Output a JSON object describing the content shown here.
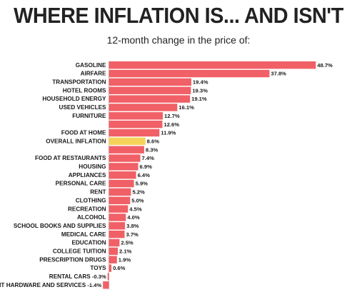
{
  "chart_data": {
    "type": "bar",
    "orientation": "horizontal",
    "title": "WHERE INFLATION IS... AND ISN'T",
    "subtitle": "12-month change in the price of:",
    "unit": "%",
    "categories": [
      "GASOLINE",
      "AIRFARE",
      "TRANSPORTATION",
      "HOTEL ROOMS",
      "HOUSEHOLD ENERGY",
      "USED VEHICLES",
      "FURNITURE",
      "",
      "FOOD AT HOME",
      "OVERALL INFLATION",
      "",
      "FOOD AT RESTAURANTS",
      "HOUSING",
      "APPLIANCES",
      "PERSONAL CARE",
      "RENT",
      "CLOTHING",
      "RECREATION",
      "ALCOHOL",
      "SCHOOL BOOKS AND SUPPLIES",
      "MEDICAL CARE",
      "EDUCATION",
      "COLLEGE TUITION",
      "PRESCRIPTION DRUGS",
      "TOYS",
      "RENTAL CARS",
      "IT HARDWARE AND SERVICES"
    ],
    "values": [
      48.7,
      37.8,
      19.4,
      19.3,
      19.1,
      16.1,
      12.7,
      12.6,
      11.9,
      8.6,
      8.3,
      7.4,
      6.9,
      6.4,
      5.9,
      5.2,
      5.0,
      4.5,
      4.0,
      3.8,
      3.7,
      2.5,
      2.1,
      1.9,
      0.6,
      -0.3,
      -1.4
    ],
    "value_labels": [
      "48.7%",
      "37.8%",
      "19.4%",
      "19.3%",
      "19.1%",
      "16.1%",
      "12.7%",
      "12.6%",
      "11.9%",
      "8.6%",
      "8.3%",
      "7.4%",
      "6.9%",
      "6.4%",
      "5.9%",
      "5.2%",
      "5.0%",
      "4.5%",
      "4.0%",
      "3.8%",
      "3.7%",
      "2.5%",
      "2.1%",
      "1.9%",
      "0.6%",
      "-0.3%",
      "-1.4%"
    ],
    "highlight_category": "OVERALL INFLATION",
    "colors": {
      "bar": "#f06066",
      "highlight": "#f5d35a",
      "axis": "#bdbdbd"
    },
    "grid": false,
    "legend": "none"
  }
}
